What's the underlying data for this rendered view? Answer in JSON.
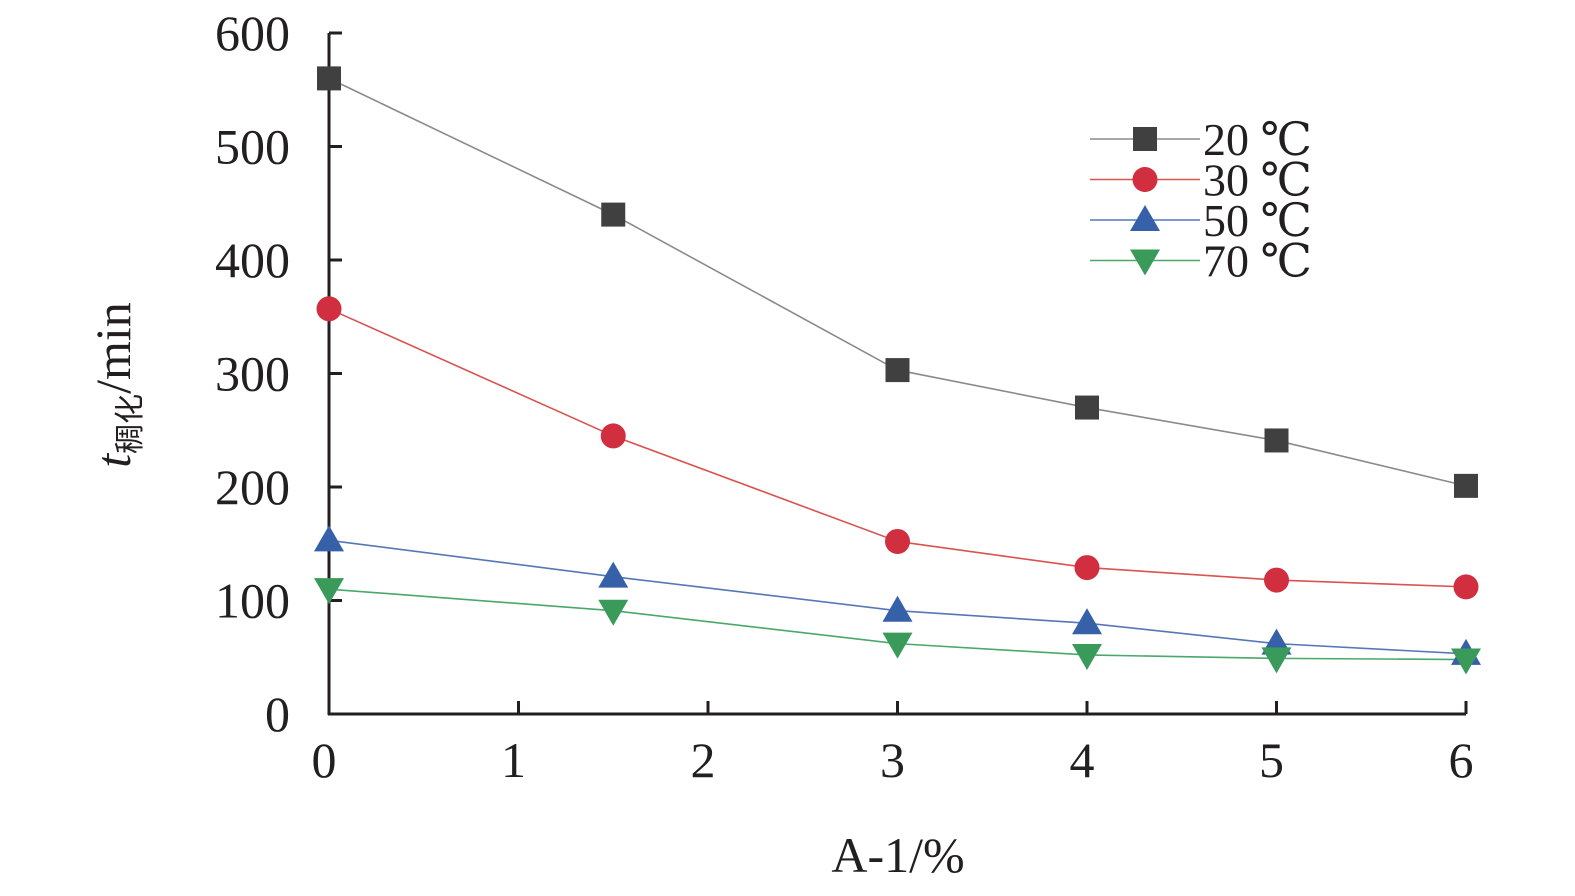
{
  "chart_data": {
    "type": "line",
    "xlabel": "A-1/%",
    "ylabel": {
      "symbol": "t",
      "subscript": "稠化",
      "unit": "/min"
    },
    "xlim": [
      0,
      6
    ],
    "ylim": [
      0,
      600
    ],
    "x_ticks": [
      0,
      1,
      2,
      3,
      4,
      5,
      6
    ],
    "y_ticks": [
      0,
      100,
      200,
      300,
      400,
      500,
      600
    ],
    "grid": false,
    "legend_position": "top-right",
    "x": [
      0,
      1.5,
      3,
      4,
      5,
      6
    ],
    "series": [
      {
        "name": "20 ℃",
        "marker": "square",
        "color": "#404041",
        "line_color": "#8a8a8a",
        "values": [
          560,
          440,
          303,
          270,
          241,
          201
        ]
      },
      {
        "name": "30 ℃",
        "marker": "circle",
        "color": "#d12e3f",
        "line_color": "#d9534f",
        "values": [
          357,
          245,
          152,
          129,
          118,
          112
        ]
      },
      {
        "name": "50 ℃",
        "marker": "triangle-up",
        "color": "#3660a8",
        "line_color": "#5577b8",
        "values": [
          153,
          121,
          91,
          80,
          62,
          53
        ]
      },
      {
        "name": "70 ℃",
        "marker": "triangle-down",
        "color": "#3a9a5a",
        "line_color": "#4aa86a",
        "values": [
          110,
          91,
          62,
          52,
          49,
          48
        ]
      }
    ]
  }
}
